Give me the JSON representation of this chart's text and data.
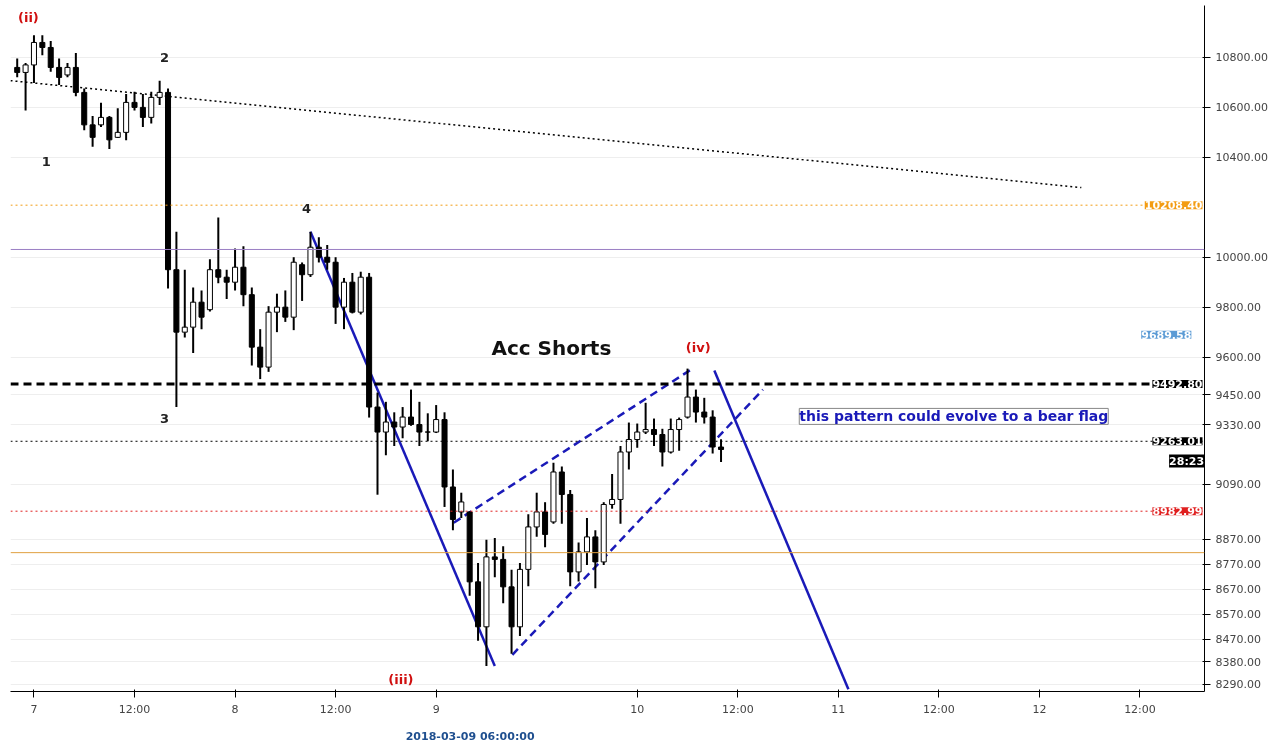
{
  "chart_data": {
    "type": "candlestick",
    "color": "#000000",
    "x": [
      "2018-03-06T22:00",
      "2018-03-06T23:00",
      "2018-03-07T00:00",
      "2018-03-07T01:00",
      "2018-03-07T02:00",
      "2018-03-07T03:00",
      "2018-03-07T04:00",
      "2018-03-07T05:00",
      "2018-03-07T06:00",
      "2018-03-07T07:00",
      "2018-03-07T08:00",
      "2018-03-07T09:00",
      "2018-03-07T10:00",
      "2018-03-07T11:00",
      "2018-03-07T12:00",
      "2018-03-07T13:00",
      "2018-03-07T14:00",
      "2018-03-07T15:00",
      "2018-03-07T16:00",
      "2018-03-07T17:00",
      "2018-03-07T18:00",
      "2018-03-07T19:00",
      "2018-03-07T20:00",
      "2018-03-07T21:00",
      "2018-03-07T22:00",
      "2018-03-07T23:00",
      "2018-03-08T00:00",
      "2018-03-08T01:00",
      "2018-03-08T02:00",
      "2018-03-08T03:00",
      "2018-03-08T04:00",
      "2018-03-08T05:00",
      "2018-03-08T06:00",
      "2018-03-08T07:00",
      "2018-03-08T08:00",
      "2018-03-08T09:00",
      "2018-03-08T10:00",
      "2018-03-08T11:00",
      "2018-03-08T12:00",
      "2018-03-08T13:00",
      "2018-03-08T14:00",
      "2018-03-08T15:00",
      "2018-03-08T16:00",
      "2018-03-08T17:00",
      "2018-03-08T18:00",
      "2018-03-08T19:00",
      "2018-03-08T20:00",
      "2018-03-08T21:00",
      "2018-03-08T22:00",
      "2018-03-08T23:00",
      "2018-03-09T00:00",
      "2018-03-09T01:00",
      "2018-03-09T02:00",
      "2018-03-09T03:00",
      "2018-03-09T04:00",
      "2018-03-09T05:00",
      "2018-03-09T06:00",
      "2018-03-09T07:00",
      "2018-03-09T08:00",
      "2018-03-09T09:00",
      "2018-03-09T10:00",
      "2018-03-09T11:00",
      "2018-03-09T12:00",
      "2018-03-09T13:00",
      "2018-03-09T14:00",
      "2018-03-09T15:00",
      "2018-03-09T16:00",
      "2018-03-09T17:00",
      "2018-03-09T18:00",
      "2018-03-09T19:00",
      "2018-03-09T20:00",
      "2018-03-09T21:00",
      "2018-03-09T22:00",
      "2018-03-09T23:00",
      "2018-03-10T00:00",
      "2018-03-10T01:00",
      "2018-03-10T02:00",
      "2018-03-10T03:00",
      "2018-03-10T04:00",
      "2018-03-10T05:00",
      "2018-03-10T06:00",
      "2018-03-10T07:00",
      "2018-03-10T08:00",
      "2018-03-10T09:00",
      "2018-03-10T10:00"
    ],
    "ohlc": [
      [
        10760,
        10796,
        10721,
        10740
      ],
      [
        10740,
        10778,
        10588,
        10770
      ],
      [
        10770,
        10889,
        10698,
        10860
      ],
      [
        10860,
        10889,
        10809,
        10840
      ],
      [
        10840,
        10866,
        10743,
        10760
      ],
      [
        10760,
        10796,
        10690,
        10720
      ],
      [
        10730,
        10778,
        10721,
        10760
      ],
      [
        10760,
        10818,
        10645,
        10660
      ],
      [
        10660,
        10676,
        10508,
        10530
      ],
      [
        10530,
        10566,
        10442,
        10480
      ],
      [
        10530,
        10619,
        10521,
        10560
      ],
      [
        10560,
        10566,
        10433,
        10470
      ],
      [
        10480,
        10597,
        10477,
        10500
      ],
      [
        10500,
        10654,
        10468,
        10620
      ],
      [
        10620,
        10663,
        10588,
        10600
      ],
      [
        10600,
        10654,
        10521,
        10560
      ],
      [
        10560,
        10663,
        10535,
        10640
      ],
      [
        10640,
        10707,
        10610,
        10660
      ],
      [
        10660,
        10676,
        9875,
        9950
      ],
      [
        9950,
        10102,
        9400,
        9700
      ],
      [
        9700,
        9950,
        9679,
        9720
      ],
      [
        9720,
        9879,
        9616,
        9820
      ],
      [
        9820,
        9867,
        9712,
        9760
      ],
      [
        9790,
        9992,
        9783,
        9950
      ],
      [
        9950,
        10159,
        9896,
        9920
      ],
      [
        9920,
        9950,
        9833,
        9900
      ],
      [
        9900,
        10035,
        9867,
        9960
      ],
      [
        9960,
        10044,
        9804,
        9850
      ],
      [
        9850,
        9879,
        9566,
        9640
      ],
      [
        9640,
        9712,
        9512,
        9560
      ],
      [
        9560,
        9804,
        9541,
        9780
      ],
      [
        9780,
        9854,
        9700,
        9800
      ],
      [
        9800,
        9867,
        9741,
        9760
      ],
      [
        9760,
        10000,
        9708,
        9980
      ],
      [
        9970,
        9979,
        9825,
        9930
      ],
      [
        9930,
        10102,
        9921,
        10040
      ],
      [
        10040,
        10080,
        9979,
        10000
      ],
      [
        10000,
        10049,
        9950,
        9980
      ],
      [
        9980,
        10000,
        9733,
        9800
      ],
      [
        9800,
        9917,
        9712,
        9900
      ],
      [
        9900,
        9937,
        9775,
        9780
      ],
      [
        9780,
        9942,
        9771,
        9920
      ],
      [
        9920,
        9937,
        9358,
        9400
      ],
      [
        9400,
        9458,
        9049,
        9300
      ],
      [
        9300,
        9421,
        9207,
        9340
      ],
      [
        9340,
        9379,
        9244,
        9320
      ],
      [
        9320,
        9400,
        9275,
        9360
      ],
      [
        9360,
        9470,
        9325,
        9330
      ],
      [
        9330,
        9421,
        9244,
        9300
      ],
      [
        9300,
        9375,
        9263,
        9300
      ],
      [
        9300,
        9408,
        9296,
        9350
      ],
      [
        9350,
        9379,
        9000,
        9080
      ],
      [
        9080,
        9150,
        8907,
        8950
      ],
      [
        8980,
        9057,
        8956,
        9020
      ],
      [
        8980,
        8982,
        8644,
        8700
      ],
      [
        8700,
        8776,
        8464,
        8520
      ],
      [
        8520,
        8869,
        8363,
        8800
      ],
      [
        8800,
        8876,
        8719,
        8790
      ],
      [
        8790,
        8843,
        8614,
        8680
      ],
      [
        8680,
        8749,
        8412,
        8520
      ],
      [
        8520,
        8776,
        8483,
        8750
      ],
      [
        8750,
        8971,
        8682,
        8920
      ],
      [
        8920,
        9057,
        8881,
        8980
      ],
      [
        8980,
        9019,
        8839,
        8890
      ],
      [
        8940,
        9177,
        8933,
        9140
      ],
      [
        9140,
        9162,
        8933,
        9050
      ],
      [
        9050,
        9068,
        8682,
        8740
      ],
      [
        8740,
        8858,
        8701,
        8820
      ],
      [
        8820,
        8956,
        8768,
        8880
      ],
      [
        8880,
        8907,
        8674,
        8780
      ],
      [
        8780,
        9019,
        8768,
        9010
      ],
      [
        9010,
        9132,
        8993,
        9030
      ],
      [
        9030,
        9244,
        8933,
        9220
      ],
      [
        9220,
        9338,
        9150,
        9270
      ],
      [
        9270,
        9334,
        9237,
        9300
      ],
      [
        9300,
        9417,
        9292,
        9310
      ],
      [
        9310,
        9354,
        9244,
        9290
      ],
      [
        9290,
        9313,
        9162,
        9220
      ],
      [
        9220,
        9354,
        9214,
        9310
      ],
      [
        9310,
        9358,
        9225,
        9350
      ],
      [
        9360,
        9554,
        9354,
        9440
      ],
      [
        9440,
        9470,
        9338,
        9380
      ],
      [
        9380,
        9437,
        9334,
        9360
      ],
      [
        9360,
        9387,
        9214,
        9240
      ],
      [
        9240,
        9271,
        9180,
        9230
      ]
    ],
    "series": [
      {
        "type": "line",
        "x": [
          "2018-03-06T21:12",
          "2018-03-12T05:00"
        ],
        "values": [
          10707,
          10279
        ],
        "color": "#000000",
        "line_style": "dotted"
      },
      {
        "type": "line",
        "x": [
          "2018-03-08T09:00",
          "2018-03-09T07:00"
        ],
        "values": [
          10102,
          8363
        ],
        "color": "#1a1ab8",
        "line_style": "solid"
      },
      {
        "type": "line",
        "x": [
          "2018-03-09T02:06",
          "2018-03-10T06:36"
        ],
        "values": [
          8937,
          9554
        ],
        "color": "#1a1ab8",
        "line_style": "dashed"
      },
      {
        "type": "line",
        "x": [
          "2018-03-09T09:06",
          "2018-03-10T15:00"
        ],
        "values": [
          8408,
          9470
        ],
        "color": "#1a1ab8",
        "line_style": "dashed"
      },
      {
        "type": "line",
        "x": [
          "2018-03-10T09:12",
          "2018-03-11T01:12"
        ],
        "values": [
          9546,
          8270
        ],
        "color": "#1a1ab8",
        "line_style": "solid"
      }
    ],
    "ref_lines": [
      {
        "axis": "y",
        "value": 10208.4,
        "label": "10208.40",
        "color": "#f39c12",
        "line_style": "dotted"
      },
      {
        "axis": "y",
        "value": 10031,
        "label": null,
        "color": "#9b7fc4",
        "line_style": "solid"
      },
      {
        "axis": "y",
        "value": 9492.8,
        "label": "9492.80",
        "color": "#000000",
        "line_style": "dashed"
      },
      {
        "axis": "y",
        "value": 9263.01,
        "label": "9263.01",
        "color": "#000000",
        "line_style": "dotted"
      },
      {
        "axis": "y",
        "value": 8982.99,
        "label": "8982.99",
        "color": "#e02020",
        "line_style": "dotted"
      },
      {
        "axis": "y",
        "value": 8817,
        "label": null,
        "color": "#e0a040",
        "line_style": "solid"
      }
    ],
    "annotations": [
      "(ii)",
      "1",
      "2",
      "3",
      "4",
      "Acc Shorts",
      "(iv)",
      "(iii)",
      "this pattern could evolve to a bear flag",
      "9689.58",
      "28:23",
      "2018-03-09 06:00:00"
    ],
    "xlim": [
      "2018-03-06T21:12",
      "2018-03-12T19:42"
    ],
    "ylim": [
      8261,
      11008
    ],
    "xticks": [
      {
        "value": "2018-03-07",
        "label": "7"
      },
      {
        "value": "2018-03-07T12:00",
        "label": "12:00"
      },
      {
        "value": "2018-03-08",
        "label": "8"
      },
      {
        "value": "2018-03-08T12:00",
        "label": "12:00"
      },
      {
        "value": "2018-03-09",
        "label": "9"
      },
      {
        "value": "2018-03-10",
        "label": "10"
      },
      {
        "value": "2018-03-10T12:00",
        "label": "12:00"
      },
      {
        "value": "2018-03-11",
        "label": "11"
      },
      {
        "value": "2018-03-11T12:00",
        "label": "12:00"
      },
      {
        "value": "2018-03-12",
        "label": "12"
      },
      {
        "value": "2018-03-12T12:00",
        "label": "12:00"
      }
    ],
    "yticks": [
      {
        "value": 8290,
        "label": "8290.00"
      },
      {
        "value": 8380,
        "label": "8380.00"
      },
      {
        "value": 8470,
        "label": "8470.00"
      },
      {
        "value": 8570,
        "label": "8570.00"
      },
      {
        "value": 8670,
        "label": "8670.00"
      },
      {
        "value": 8770,
        "label": "8770.00"
      },
      {
        "value": 8870,
        "label": "8870.00"
      },
      {
        "value": 9090,
        "label": "9090.00"
      },
      {
        "value": 9330,
        "label": "9330.00"
      },
      {
        "value": 9450,
        "label": "9450.00"
      },
      {
        "value": 9600,
        "label": "9600.00"
      },
      {
        "value": 9800,
        "label": "9800.00"
      },
      {
        "value": 10000,
        "label": "10000.00"
      },
      {
        "value": 10400,
        "label": "10400.00"
      },
      {
        "value": 10600,
        "label": "10600.00"
      },
      {
        "value": 10800,
        "label": "10800.00"
      }
    ],
    "grid": "y"
  }
}
